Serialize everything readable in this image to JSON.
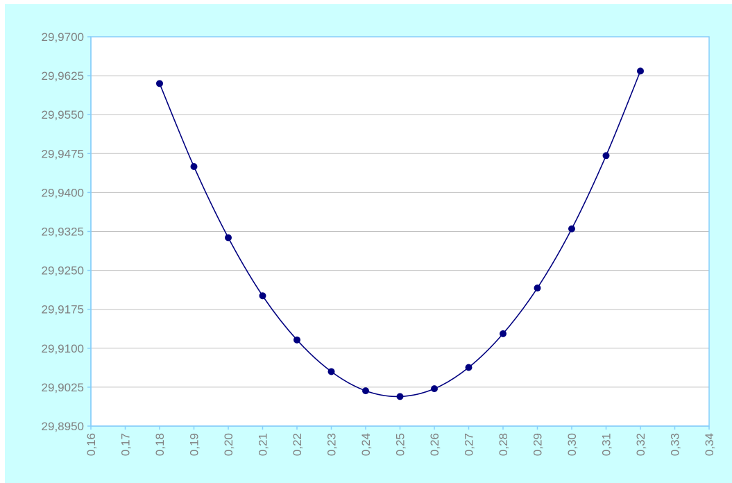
{
  "colors": {
    "chart_area_background": "#ccffff",
    "plot_background": "#ffffff",
    "plot_border": "#87cefa",
    "gridline": "#c0c0c0",
    "series": "#000080",
    "tick_label": "#808080"
  },
  "chart_data": {
    "type": "scatter",
    "title": "",
    "xlabel": "",
    "ylabel": "",
    "xlim": [
      0.16,
      0.34
    ],
    "ylim": [
      29.895,
      29.97
    ],
    "x_ticks": [
      0.16,
      0.17,
      0.18,
      0.19,
      0.2,
      0.21,
      0.22,
      0.23,
      0.24,
      0.25,
      0.26,
      0.27,
      0.28,
      0.29,
      0.3,
      0.31,
      0.32,
      0.33,
      0.34
    ],
    "x_tick_labels": [
      "0,16",
      "0,17",
      "0,18",
      "0,19",
      "0,20",
      "0,21",
      "0,22",
      "0,23",
      "0,24",
      "0,25",
      "0,26",
      "0,27",
      "0,28",
      "0,29",
      "0,30",
      "0,31",
      "0,32",
      "0,33",
      "0,34"
    ],
    "y_ticks": [
      29.895,
      29.9025,
      29.91,
      29.9175,
      29.925,
      29.9325,
      29.94,
      29.9475,
      29.955,
      29.9625,
      29.97
    ],
    "y_tick_labels": [
      "29,8950",
      "29,9025",
      "29,9100",
      "29,9175",
      "29,9250",
      "29,9325",
      "29,9400",
      "29,9475",
      "29,9550",
      "29,9625",
      "29,9700"
    ],
    "grid": "horizontal",
    "legend": "none",
    "line_style": "smooth line with circle markers",
    "series": [
      {
        "x": [
          0.18,
          0.19,
          0.2,
          0.21,
          0.22,
          0.23,
          0.24,
          0.25,
          0.26,
          0.27,
          0.28,
          0.29,
          0.3,
          0.31,
          0.32
        ],
        "y": [
          29.961,
          29.945,
          29.9313,
          29.9201,
          29.9116,
          29.9055,
          29.9018,
          29.9007,
          29.9022,
          29.9063,
          29.9128,
          29.9216,
          29.933,
          29.9471,
          29.9634
        ]
      }
    ]
  }
}
